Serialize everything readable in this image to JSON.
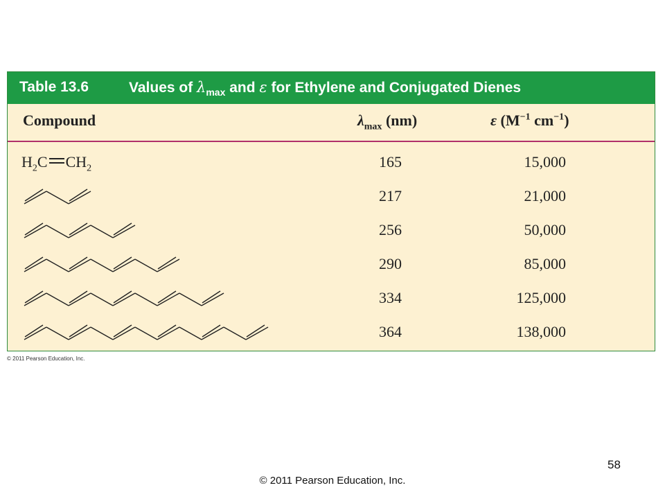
{
  "table": {
    "number": "Table 13.6",
    "title_parts": {
      "t1": "Values of ",
      "lambda": "λ",
      "max": "max",
      "t2": " and ",
      "epsilon": "ε",
      "t3": " for Ethylene and Conjugated Dienes"
    },
    "columns": {
      "compound": "Compound",
      "lambda": "λ",
      "lambda_sub": "max",
      "lambda_unit": " (nm)",
      "epsilon": "ε",
      "epsilon_open": " (M",
      "epsilon_exp1": "−1",
      "epsilon_mid": " cm",
      "epsilon_exp2": "−1",
      "epsilon_close": ")"
    },
    "ethylene_formula": {
      "h": "H",
      "sub1": "2",
      "c1": "C",
      "c2": "CH",
      "sub2": "2"
    },
    "rows": [
      {
        "compound": "ethylene",
        "double_bonds": 1,
        "lambda_max": "165",
        "epsilon": "15,000"
      },
      {
        "compound": "diene",
        "double_bonds": 2,
        "lambda_max": "217",
        "epsilon": "21,000"
      },
      {
        "compound": "triene",
        "double_bonds": 3,
        "lambda_max": "256",
        "epsilon": "50,000"
      },
      {
        "compound": "tetraene",
        "double_bonds": 4,
        "lambda_max": "290",
        "epsilon": "85,000"
      },
      {
        "compound": "pentaene",
        "double_bonds": 5,
        "lambda_max": "334",
        "epsilon": "125,000"
      },
      {
        "compound": "hexaene",
        "double_bonds": 6,
        "lambda_max": "364",
        "epsilon": "138,000"
      }
    ],
    "colors": {
      "header_bg": "#1e9b45",
      "body_bg": "#fdf1d2",
      "rule": "#b0306a"
    }
  },
  "credit_small": "© 2011 Pearson Education, Inc.",
  "page_number": "58",
  "footer_credit": "© 2011 Pearson Education, Inc."
}
